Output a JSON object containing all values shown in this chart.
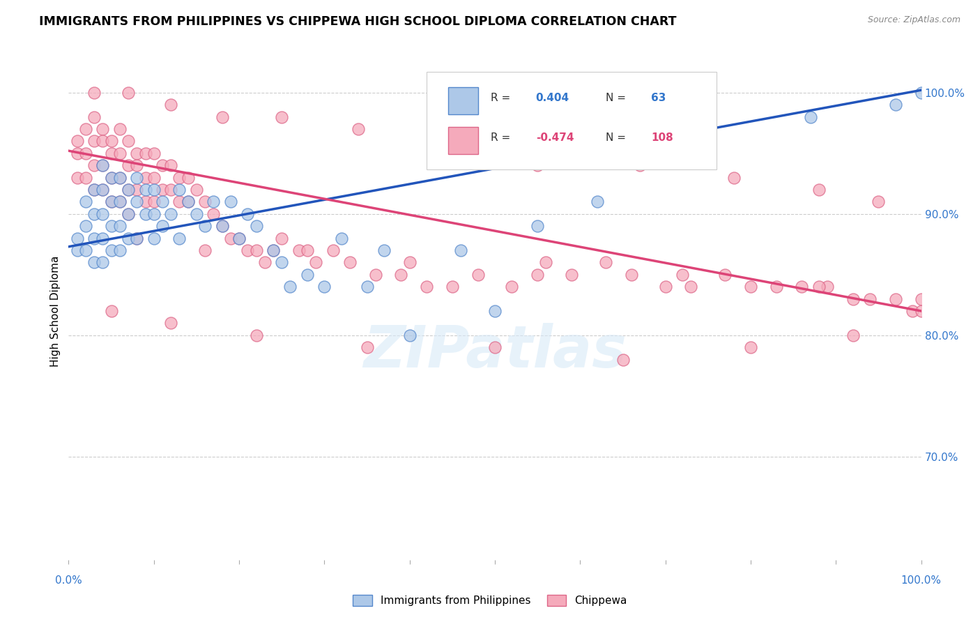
{
  "title": "IMMIGRANTS FROM PHILIPPINES VS CHIPPEWA HIGH SCHOOL DIPLOMA CORRELATION CHART",
  "source": "Source: ZipAtlas.com",
  "ylabel": "High School Diploma",
  "xlim": [
    0.0,
    1.0
  ],
  "ylim": [
    0.615,
    1.025
  ],
  "yticks": [
    0.7,
    0.8,
    0.9,
    1.0
  ],
  "ytick_labels": [
    "70.0%",
    "80.0%",
    "90.0%",
    "100.0%"
  ],
  "legend_labels": [
    "Immigrants from Philippines",
    "Chippewa"
  ],
  "r_blue": 0.404,
  "n_blue": 63,
  "r_pink": -0.474,
  "n_pink": 108,
  "blue_color": "#adc8e8",
  "blue_edge": "#5588cc",
  "pink_color": "#f5aabb",
  "pink_edge": "#dd6688",
  "blue_line_color": "#2255bb",
  "pink_line_color": "#dd4477",
  "watermark": "ZIPatlas",
  "blue_line_y0": 0.873,
  "blue_line_y1": 1.002,
  "pink_line_y0": 0.952,
  "pink_line_y1": 0.82,
  "blue_scatter_x": [
    0.01,
    0.01,
    0.02,
    0.02,
    0.02,
    0.03,
    0.03,
    0.03,
    0.03,
    0.04,
    0.04,
    0.04,
    0.04,
    0.04,
    0.05,
    0.05,
    0.05,
    0.05,
    0.06,
    0.06,
    0.06,
    0.06,
    0.07,
    0.07,
    0.07,
    0.08,
    0.08,
    0.08,
    0.09,
    0.09,
    0.1,
    0.1,
    0.1,
    0.11,
    0.11,
    0.12,
    0.13,
    0.13,
    0.14,
    0.15,
    0.16,
    0.17,
    0.18,
    0.19,
    0.2,
    0.21,
    0.22,
    0.24,
    0.25,
    0.26,
    0.28,
    0.3,
    0.32,
    0.35,
    0.37,
    0.4,
    0.46,
    0.5,
    0.55,
    0.62,
    0.87,
    0.97,
    1.0
  ],
  "blue_scatter_y": [
    0.88,
    0.87,
    0.91,
    0.89,
    0.87,
    0.92,
    0.9,
    0.88,
    0.86,
    0.94,
    0.92,
    0.9,
    0.88,
    0.86,
    0.93,
    0.91,
    0.89,
    0.87,
    0.93,
    0.91,
    0.89,
    0.87,
    0.92,
    0.9,
    0.88,
    0.93,
    0.91,
    0.88,
    0.92,
    0.9,
    0.92,
    0.9,
    0.88,
    0.91,
    0.89,
    0.9,
    0.92,
    0.88,
    0.91,
    0.9,
    0.89,
    0.91,
    0.89,
    0.91,
    0.88,
    0.9,
    0.89,
    0.87,
    0.86,
    0.84,
    0.85,
    0.84,
    0.88,
    0.84,
    0.87,
    0.8,
    0.87,
    0.82,
    0.89,
    0.91,
    0.98,
    0.99,
    1.0
  ],
  "pink_scatter_x": [
    0.01,
    0.01,
    0.01,
    0.02,
    0.02,
    0.02,
    0.03,
    0.03,
    0.03,
    0.03,
    0.04,
    0.04,
    0.04,
    0.04,
    0.05,
    0.05,
    0.05,
    0.05,
    0.06,
    0.06,
    0.06,
    0.06,
    0.07,
    0.07,
    0.07,
    0.07,
    0.08,
    0.08,
    0.08,
    0.09,
    0.09,
    0.09,
    0.1,
    0.1,
    0.1,
    0.11,
    0.11,
    0.12,
    0.12,
    0.13,
    0.13,
    0.14,
    0.14,
    0.15,
    0.16,
    0.17,
    0.18,
    0.19,
    0.2,
    0.21,
    0.22,
    0.23,
    0.24,
    0.25,
    0.27,
    0.29,
    0.31,
    0.33,
    0.36,
    0.39,
    0.42,
    0.45,
    0.48,
    0.52,
    0.55,
    0.59,
    0.63,
    0.66,
    0.7,
    0.73,
    0.77,
    0.8,
    0.83,
    0.86,
    0.89,
    0.92,
    0.94,
    0.97,
    0.99,
    1.0,
    0.03,
    0.07,
    0.12,
    0.18,
    0.25,
    0.34,
    0.44,
    0.55,
    0.67,
    0.78,
    0.88,
    0.95,
    0.05,
    0.12,
    0.22,
    0.35,
    0.5,
    0.65,
    0.8,
    0.92,
    0.08,
    0.16,
    0.28,
    0.4,
    0.56,
    0.72,
    0.88,
    1.0
  ],
  "pink_scatter_y": [
    0.96,
    0.95,
    0.93,
    0.97,
    0.95,
    0.93,
    0.98,
    0.96,
    0.94,
    0.92,
    0.97,
    0.96,
    0.94,
    0.92,
    0.96,
    0.95,
    0.93,
    0.91,
    0.97,
    0.95,
    0.93,
    0.91,
    0.96,
    0.94,
    0.92,
    0.9,
    0.95,
    0.94,
    0.92,
    0.95,
    0.93,
    0.91,
    0.95,
    0.93,
    0.91,
    0.94,
    0.92,
    0.94,
    0.92,
    0.93,
    0.91,
    0.93,
    0.91,
    0.92,
    0.91,
    0.9,
    0.89,
    0.88,
    0.88,
    0.87,
    0.87,
    0.86,
    0.87,
    0.88,
    0.87,
    0.86,
    0.87,
    0.86,
    0.85,
    0.85,
    0.84,
    0.84,
    0.85,
    0.84,
    0.85,
    0.85,
    0.86,
    0.85,
    0.84,
    0.84,
    0.85,
    0.84,
    0.84,
    0.84,
    0.84,
    0.83,
    0.83,
    0.83,
    0.82,
    0.82,
    1.0,
    1.0,
    0.99,
    0.98,
    0.98,
    0.97,
    0.95,
    0.94,
    0.94,
    0.93,
    0.92,
    0.91,
    0.82,
    0.81,
    0.8,
    0.79,
    0.79,
    0.78,
    0.79,
    0.8,
    0.88,
    0.87,
    0.87,
    0.86,
    0.86,
    0.85,
    0.84,
    0.83
  ]
}
